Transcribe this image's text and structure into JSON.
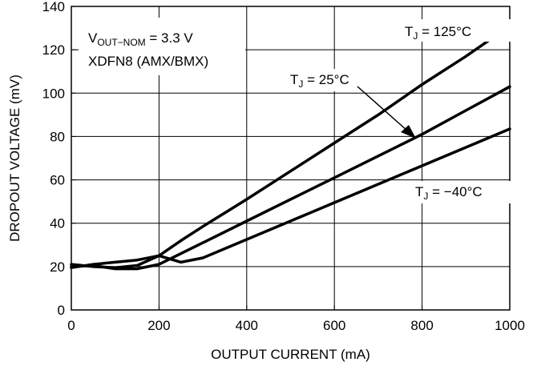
{
  "chart_data": {
    "type": "line",
    "xlabel": "OUTPUT CURRENT (mA)",
    "ylabel": "DROPOUT VOLTAGE (mV)",
    "xlim": [
      0,
      1000
    ],
    "ylim": [
      0,
      140
    ],
    "xticks": [
      0,
      200,
      400,
      600,
      800,
      1000
    ],
    "yticks": [
      0,
      20,
      40,
      60,
      80,
      100,
      120,
      140
    ],
    "grid": true,
    "legend": "none",
    "annotations": {
      "condition_1": {
        "main": "V",
        "sub": "OUT−NOM",
        "rest": " = 3.3 V"
      },
      "condition_2": "XDFN8 (AMX/BMX)"
    },
    "series": [
      {
        "name": "T_J = 125°C",
        "label": {
          "main": "T",
          "sub": "J",
          "rest": " = 125°C"
        },
        "x": [
          0,
          50,
          100,
          150,
          200,
          250,
          300,
          400,
          500,
          600,
          700,
          800,
          900,
          1000
        ],
        "values": [
          21,
          20,
          19.5,
          20.5,
          25,
          32,
          38.5,
          51,
          64,
          77,
          90,
          104,
          117,
          131
        ]
      },
      {
        "name": "T_J = 25°C",
        "label": {
          "main": "T",
          "sub": "J",
          "rest": " = 25°C"
        },
        "x": [
          0,
          50,
          100,
          150,
          200,
          250,
          300,
          400,
          500,
          600,
          700,
          800,
          900,
          1000
        ],
        "values": [
          20,
          20.5,
          19,
          19,
          21,
          26,
          31,
          41,
          51,
          61,
          71,
          81,
          92,
          103
        ]
      },
      {
        "name": "T_J = −40°C",
        "label": {
          "main": "T",
          "sub": "J",
          "rest": " = −40°C"
        },
        "x": [
          0,
          50,
          100,
          150,
          200,
          250,
          300,
          400,
          500,
          600,
          700,
          800,
          900,
          1000
        ],
        "values": [
          19.5,
          21,
          22,
          23,
          25,
          22,
          24,
          32.5,
          41,
          49.5,
          58,
          66.5,
          75,
          83.5
        ]
      }
    ]
  }
}
